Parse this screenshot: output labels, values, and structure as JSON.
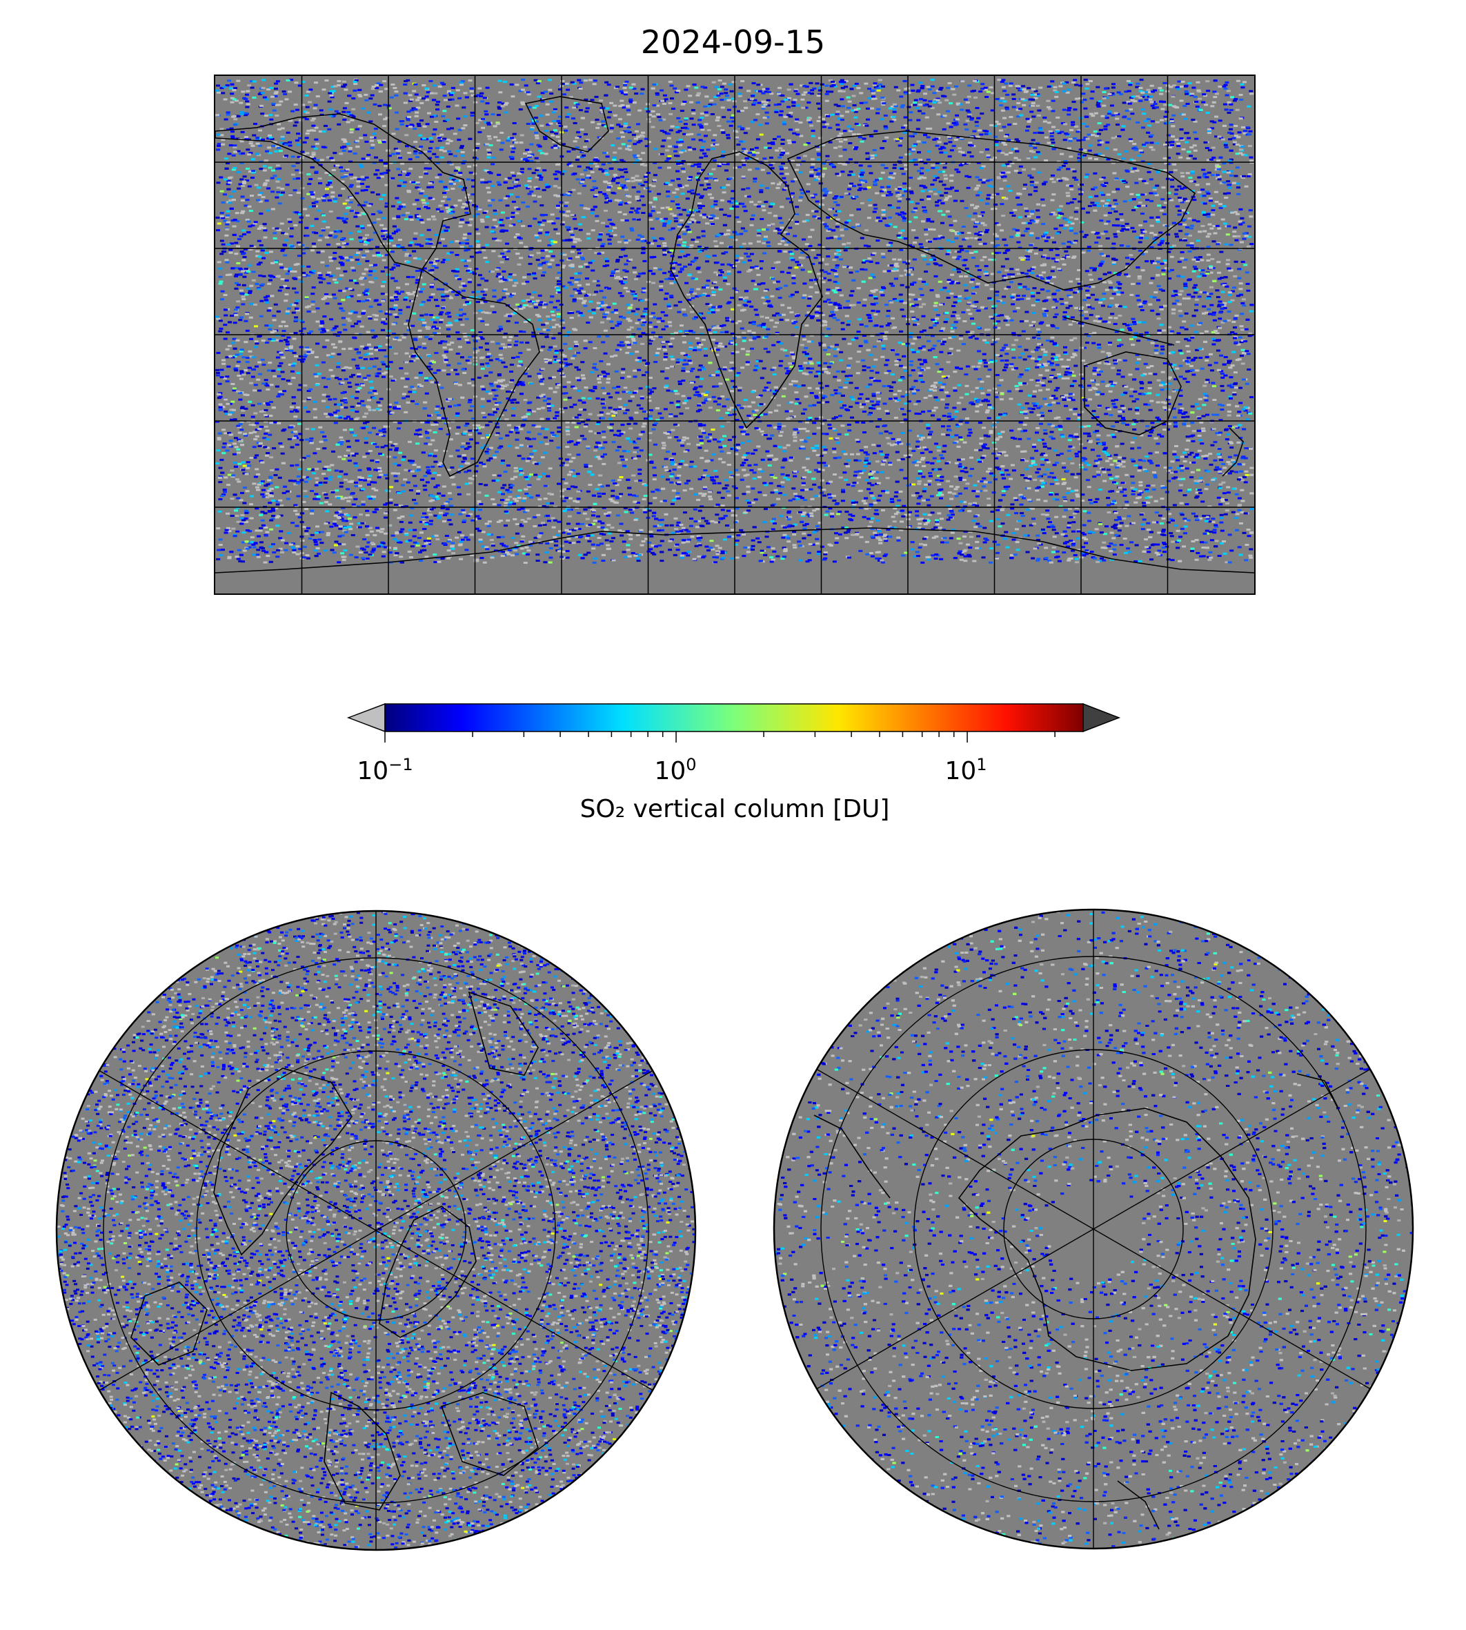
{
  "title": "2024-09-15",
  "colorbar": {
    "label": "SO₂ vertical column [DU]",
    "scale": "log",
    "range": [
      0.1,
      25
    ],
    "ticks": [
      {
        "base": "10",
        "exp": "−1"
      },
      {
        "base": "10",
        "exp": "0"
      },
      {
        "base": "10",
        "exp": "1"
      }
    ],
    "colormap": "jet",
    "under_color": "#c0c0c0",
    "over_color": "#404040"
  },
  "maps": {
    "global": {
      "projection": "plate-carree",
      "gridlines_deg": 30
    },
    "north_polar": {
      "projection": "north-polar-stereographic",
      "hemisphere": "north"
    },
    "south_polar": {
      "projection": "south-polar-stereographic",
      "hemisphere": "south"
    }
  },
  "colors": {
    "background_no_data": "#808080",
    "below_range": "#c0c0c0",
    "coastline": "#000000"
  }
}
